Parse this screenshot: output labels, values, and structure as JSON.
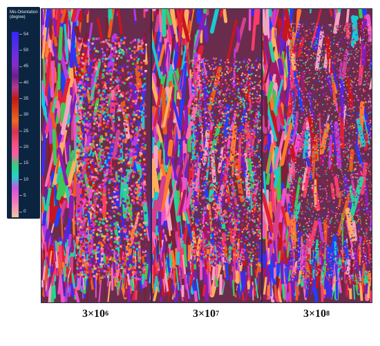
{
  "legend": {
    "title_line1": "Mis-Orientation",
    "title_line2": "(degree)",
    "ticks": [
      "54",
      "50",
      "45",
      "40",
      "35",
      "30",
      "25",
      "20",
      "15",
      "10",
      "5",
      "0"
    ]
  },
  "panels": [
    {
      "base": "3×10",
      "exp": "6"
    },
    {
      "base": "3×10",
      "exp": "7"
    },
    {
      "base": "3×10",
      "exp": "8"
    }
  ],
  "colors": [
    "#ff3b6b",
    "#e0203a",
    "#c7151d",
    "#ea5a1c",
    "#ff7a2e",
    "#8b1bb5",
    "#6a22c7",
    "#3a2df2",
    "#1e40ff",
    "#19c9d4",
    "#26d3a0",
    "#3cc957",
    "#f04fd0",
    "#b93be0",
    "#ff6fa8",
    "#d44090",
    "#a01a6a",
    "#f2a5c0",
    "#7b1f3a",
    "#ffb05c"
  ]
}
